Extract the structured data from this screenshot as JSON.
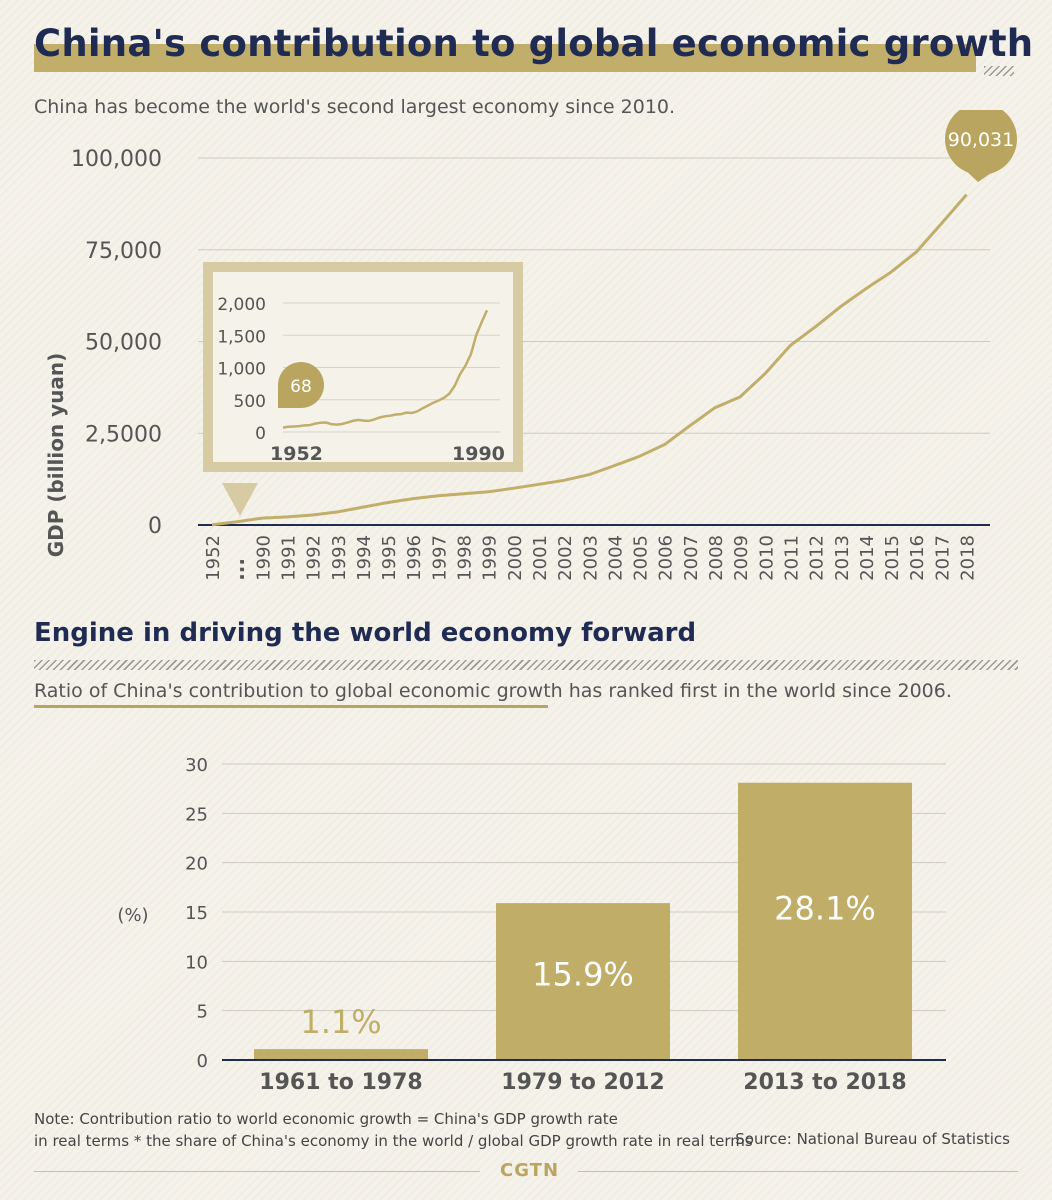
{
  "header": {
    "title": "China's contribution to global economic growth",
    "subtitle": "China has become the world's second largest economy since 2010."
  },
  "section2": {
    "title": "Engine in driving the world economy forward",
    "subtitle": "Ratio of China's contribution to global economic growth has ranked first in the world since 2006."
  },
  "footer": {
    "note_line1": "Note: Contribution ratio to world economic growth = China's GDP growth rate",
    "note_line2": "in real terms * the share of China's economy in the world / global GDP growth rate in real terms",
    "source": "Source: National Bureau of Statistics",
    "logo": "CGTN"
  },
  "colors": {
    "gold": "#c0ae6a",
    "navy": "#1f2b52",
    "grid": "#cfcac0",
    "text": "#555555"
  },
  "chart_data": [
    {
      "type": "line",
      "ylabel": "GDP (billion yuan)",
      "ylim": [
        0,
        100000
      ],
      "yticks": [
        0,
        25000,
        50000,
        75000,
        100000
      ],
      "ytick_labels": [
        "0",
        "2,5000",
        "50,000",
        "75,000",
        "100,000"
      ],
      "categories": [
        "1952",
        "...",
        "1990",
        "1991",
        "1992",
        "1993",
        "1994",
        "1995",
        "1996",
        "1997",
        "1998",
        "1999",
        "2000",
        "2001",
        "2002",
        "2003",
        "2004",
        "2005",
        "2006",
        "2007",
        "2008",
        "2009",
        "2010",
        "2011",
        "2012",
        "2013",
        "2014",
        "2015",
        "2016",
        "2017",
        "2018"
      ],
      "values": [
        68,
        null,
        1888,
        2201,
        2719,
        3567,
        4864,
        6134,
        7181,
        7972,
        8520,
        9056,
        10028,
        11086,
        12172,
        13742,
        16184,
        18732,
        21944,
        27023,
        31952,
        34908,
        41303,
        48930,
        54037,
        59524,
        64397,
        68905,
        74359,
        82075,
        90031
      ],
      "callout_value_label": "90,031",
      "inset": {
        "type": "line",
        "x_start_label": "1952",
        "x_end_label": "1990",
        "ylim": [
          0,
          2000
        ],
        "yticks": [
          0,
          500,
          1000,
          1500,
          2000
        ],
        "ytick_labels": [
          "0",
          "500",
          "1,000",
          "1,500",
          "2,000"
        ],
        "years": [
          1952,
          1953,
          1954,
          1955,
          1956,
          1957,
          1958,
          1959,
          1960,
          1961,
          1962,
          1963,
          1964,
          1965,
          1966,
          1967,
          1968,
          1969,
          1970,
          1971,
          1972,
          1973,
          1974,
          1975,
          1976,
          1977,
          1978,
          1979,
          1980,
          1981,
          1982,
          1983,
          1984,
          1985,
          1986,
          1987,
          1988,
          1989,
          1990
        ],
        "values": [
          68,
          82,
          86,
          91,
          103,
          107,
          131,
          144,
          147,
          123,
          115,
          124,
          146,
          172,
          187,
          177,
          172,
          195,
          225,
          243,
          252,
          272,
          278,
          300,
          294,
          320,
          368,
          409,
          455,
          489,
          532,
          596,
          720,
          902,
          1028,
          1206,
          1504,
          1700,
          1888
        ],
        "callout_value_label": "68"
      }
    },
    {
      "type": "bar",
      "ylabel": "(%)",
      "ylim": [
        0,
        30
      ],
      "yticks": [
        0,
        5,
        10,
        15,
        20,
        25,
        30
      ],
      "categories": [
        "1961 to 1978",
        "1979 to 2012",
        "2013 to 2018"
      ],
      "values": [
        1.1,
        15.9,
        28.1
      ],
      "value_labels": [
        "1.1%",
        "15.9%",
        "28.1%"
      ]
    }
  ]
}
